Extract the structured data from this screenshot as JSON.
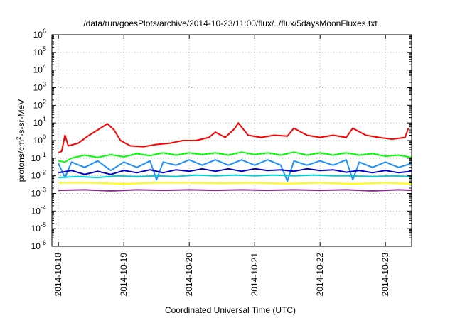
{
  "chart_data": {
    "type": "line",
    "title": "/data/run/goesPlots/archive/2014-10-23/11:00/flux/../flux/5daysMoonFluxes.txt",
    "xlabel": "Coordinated Universal Time (UTC)",
    "ylabel_base": "protons/cm",
    "ylabel_sup": "2",
    "ylabel_tail": "-s-sr-MeV",
    "y_scale": "log",
    "ylim_exponent": [
      -6,
      6
    ],
    "y_ticks": [
      {
        "base": "10",
        "exp": "6"
      },
      {
        "base": "10",
        "exp": "5"
      },
      {
        "base": "10",
        "exp": "4"
      },
      {
        "base": "10",
        "exp": "3"
      },
      {
        "base": "10",
        "exp": "2"
      },
      {
        "base": "10",
        "exp": "1"
      },
      {
        "base": "10",
        "exp": "0"
      },
      {
        "base": "10",
        "exp": "-1"
      },
      {
        "base": "10",
        "exp": "-2"
      },
      {
        "base": "10",
        "exp": "-3"
      },
      {
        "base": "10",
        "exp": "-4"
      },
      {
        "base": "10",
        "exp": "-5"
      },
      {
        "base": "10",
        "exp": "-6"
      }
    ],
    "xlim_days": [
      -0.1,
      5.4
    ],
    "x_ticks": [
      "2014-10-18",
      "2014-10-19",
      "2014-10-20",
      "2014-10-21",
      "2014-10-22",
      "2014-10-23"
    ],
    "grid": true,
    "legend": false,
    "series": [
      {
        "color": "#ff0000",
        "points": [
          [
            0.0,
            0.2
          ],
          [
            0.05,
            0.25
          ],
          [
            0.1,
            2.0
          ],
          [
            0.15,
            0.5
          ],
          [
            0.3,
            0.7
          ],
          [
            0.45,
            1.8
          ],
          [
            0.6,
            4.0
          ],
          [
            0.75,
            9.0
          ],
          [
            0.85,
            4.0
          ],
          [
            0.95,
            1.0
          ],
          [
            1.1,
            0.5
          ],
          [
            1.3,
            0.45
          ],
          [
            1.5,
            0.6
          ],
          [
            1.7,
            0.7
          ],
          [
            1.9,
            1.0
          ],
          [
            2.1,
            1.0
          ],
          [
            2.3,
            1.5
          ],
          [
            2.4,
            3.0
          ],
          [
            2.55,
            1.5
          ],
          [
            2.7,
            5.0
          ],
          [
            2.75,
            10.0
          ],
          [
            2.9,
            2.0
          ],
          [
            3.1,
            1.5
          ],
          [
            3.3,
            2.0
          ],
          [
            3.5,
            1.8
          ],
          [
            3.6,
            5.0
          ],
          [
            3.8,
            2.0
          ],
          [
            4.0,
            1.5
          ],
          [
            4.2,
            2.0
          ],
          [
            4.4,
            1.5
          ],
          [
            4.5,
            5.0
          ],
          [
            4.7,
            2.0
          ],
          [
            4.9,
            1.5
          ],
          [
            5.1,
            1.2
          ],
          [
            5.3,
            1.5
          ],
          [
            5.35,
            5.0
          ]
        ]
      },
      {
        "color": "#00ff00",
        "points": [
          [
            0.0,
            0.07
          ],
          [
            0.1,
            0.06
          ],
          [
            0.2,
            0.1
          ],
          [
            0.4,
            0.15
          ],
          [
            0.6,
            0.11
          ],
          [
            0.8,
            0.16
          ],
          [
            1.0,
            0.12
          ],
          [
            1.2,
            0.18
          ],
          [
            1.4,
            0.14
          ],
          [
            1.6,
            0.2
          ],
          [
            1.8,
            0.15
          ],
          [
            2.0,
            0.2
          ],
          [
            2.2,
            0.16
          ],
          [
            2.4,
            0.2
          ],
          [
            2.6,
            0.15
          ],
          [
            2.8,
            0.22
          ],
          [
            3.0,
            0.16
          ],
          [
            3.2,
            0.2
          ],
          [
            3.4,
            0.15
          ],
          [
            3.6,
            0.22
          ],
          [
            3.8,
            0.15
          ],
          [
            4.0,
            0.2
          ],
          [
            4.2,
            0.15
          ],
          [
            4.4,
            0.2
          ],
          [
            4.6,
            0.15
          ],
          [
            4.8,
            0.18
          ],
          [
            5.0,
            0.13
          ],
          [
            5.2,
            0.15
          ],
          [
            5.4,
            0.11
          ]
        ]
      },
      {
        "color": "#1e90ff",
        "points": [
          [
            0.0,
            0.05
          ],
          [
            0.1,
            0.008
          ],
          [
            0.2,
            0.06
          ],
          [
            0.4,
            0.03
          ],
          [
            0.6,
            0.07
          ],
          [
            0.8,
            0.02
          ],
          [
            1.0,
            0.06
          ],
          [
            1.2,
            0.03
          ],
          [
            1.4,
            0.07
          ],
          [
            1.5,
            0.006
          ],
          [
            1.6,
            0.06
          ],
          [
            1.8,
            0.04
          ],
          [
            2.0,
            0.08
          ],
          [
            2.2,
            0.04
          ],
          [
            2.4,
            0.08
          ],
          [
            2.6,
            0.04
          ],
          [
            2.8,
            0.08
          ],
          [
            3.0,
            0.04
          ],
          [
            3.2,
            0.08
          ],
          [
            3.4,
            0.04
          ],
          [
            3.5,
            0.005
          ],
          [
            3.6,
            0.07
          ],
          [
            3.8,
            0.04
          ],
          [
            4.0,
            0.07
          ],
          [
            4.2,
            0.04
          ],
          [
            4.4,
            0.08
          ],
          [
            4.5,
            0.006
          ],
          [
            4.6,
            0.06
          ],
          [
            4.8,
            0.03
          ],
          [
            5.0,
            0.06
          ],
          [
            5.2,
            0.03
          ],
          [
            5.4,
            0.05
          ]
        ]
      },
      {
        "color": "#0000cd",
        "points": [
          [
            0.0,
            0.015
          ],
          [
            0.2,
            0.02
          ],
          [
            0.4,
            0.012
          ],
          [
            0.6,
            0.018
          ],
          [
            0.8,
            0.012
          ],
          [
            1.0,
            0.02
          ],
          [
            1.2,
            0.015
          ],
          [
            1.4,
            0.022
          ],
          [
            1.6,
            0.015
          ],
          [
            1.8,
            0.022
          ],
          [
            2.0,
            0.018
          ],
          [
            2.2,
            0.025
          ],
          [
            2.4,
            0.018
          ],
          [
            2.6,
            0.025
          ],
          [
            2.8,
            0.018
          ],
          [
            3.0,
            0.025
          ],
          [
            3.2,
            0.02
          ],
          [
            3.4,
            0.022
          ],
          [
            3.6,
            0.018
          ],
          [
            3.8,
            0.025
          ],
          [
            4.0,
            0.02
          ],
          [
            4.2,
            0.022
          ],
          [
            4.4,
            0.016
          ],
          [
            4.6,
            0.02
          ],
          [
            4.8,
            0.015
          ],
          [
            5.0,
            0.02
          ],
          [
            5.2,
            0.015
          ],
          [
            5.4,
            0.018
          ]
        ]
      },
      {
        "color": "#00ced1",
        "points": [
          [
            0.0,
            0.008
          ],
          [
            0.3,
            0.009
          ],
          [
            0.6,
            0.008
          ],
          [
            0.9,
            0.01
          ],
          [
            1.2,
            0.009
          ],
          [
            1.5,
            0.01
          ],
          [
            1.8,
            0.009
          ],
          [
            2.1,
            0.011
          ],
          [
            2.4,
            0.01
          ],
          [
            2.7,
            0.011
          ],
          [
            3.0,
            0.01
          ],
          [
            3.3,
            0.011
          ],
          [
            3.6,
            0.01
          ],
          [
            3.9,
            0.011
          ],
          [
            4.2,
            0.01
          ],
          [
            4.5,
            0.01
          ],
          [
            4.8,
            0.009
          ],
          [
            5.1,
            0.01
          ],
          [
            5.4,
            0.009
          ]
        ]
      },
      {
        "color": "#ffff00",
        "points": [
          [
            0.0,
            0.004
          ],
          [
            0.5,
            0.004
          ],
          [
            1.0,
            0.0035
          ],
          [
            1.5,
            0.004
          ],
          [
            2.0,
            0.004
          ],
          [
            2.5,
            0.0038
          ],
          [
            3.0,
            0.004
          ],
          [
            3.5,
            0.0036
          ],
          [
            4.0,
            0.004
          ],
          [
            4.5,
            0.0035
          ],
          [
            5.0,
            0.004
          ],
          [
            5.4,
            0.0035
          ]
        ]
      },
      {
        "color": "#8b2a8b",
        "points": [
          [
            0.0,
            0.0015
          ],
          [
            0.4,
            0.0016
          ],
          [
            0.8,
            0.0014
          ],
          [
            1.2,
            0.0016
          ],
          [
            1.6,
            0.0015
          ],
          [
            2.0,
            0.0016
          ],
          [
            2.4,
            0.0015
          ],
          [
            2.8,
            0.0016
          ],
          [
            3.2,
            0.0015
          ],
          [
            3.6,
            0.0016
          ],
          [
            4.0,
            0.0015
          ],
          [
            4.4,
            0.0016
          ],
          [
            4.8,
            0.0014
          ],
          [
            5.2,
            0.0016
          ],
          [
            5.4,
            0.0015
          ]
        ]
      }
    ]
  }
}
